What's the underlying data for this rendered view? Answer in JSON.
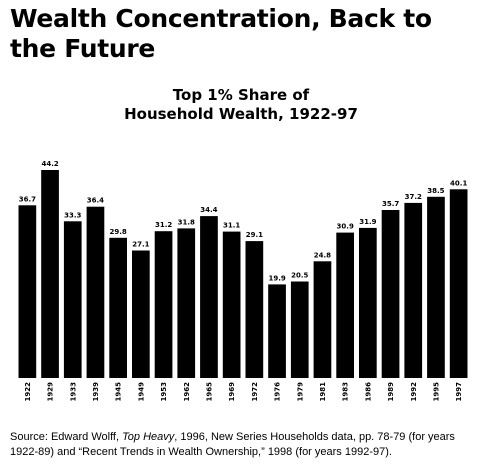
{
  "headline": {
    "line1": "Wealth Concentration, Back to",
    "line2": "the Future"
  },
  "chart_data": {
    "type": "bar",
    "title_line1": "Top 1% Share of",
    "title_line2": "Household Wealth, 1922-97",
    "categories": [
      "1922",
      "1929",
      "1933",
      "1939",
      "1945",
      "1949",
      "1953",
      "1962",
      "1965",
      "1969",
      "1972",
      "1976",
      "1979",
      "1981",
      "1983",
      "1986",
      "1989",
      "1992",
      "1995",
      "1997"
    ],
    "values": [
      36.7,
      44.2,
      33.3,
      36.4,
      29.8,
      27.1,
      31.2,
      31.8,
      34.4,
      31.1,
      29.1,
      19.9,
      20.5,
      24.8,
      30.9,
      31.9,
      35.7,
      37.2,
      38.5,
      40.1
    ],
    "value_labels": [
      "36.7",
      "44.2",
      "33.3",
      "36.4",
      "29.8",
      "27.1",
      "31.2",
      "31.8",
      "34.4",
      "31.1",
      "29.1",
      "19.9",
      "20.5",
      "24.8",
      "30.9",
      "31.9",
      "35.7",
      "37.2",
      "38.5",
      "40.1"
    ],
    "ylim": [
      0,
      44.2
    ],
    "bar_color": "#000000",
    "grid": false
  },
  "source": {
    "prefix": "Source: Edward Wolff, ",
    "book": "Top Heavy",
    "rest": ", 1996, New Series Households data, pp. 78-79 (for years 1922-89) and “Recent Trends in Wealth Ownership,” 1998 (for years 1992-97)."
  }
}
